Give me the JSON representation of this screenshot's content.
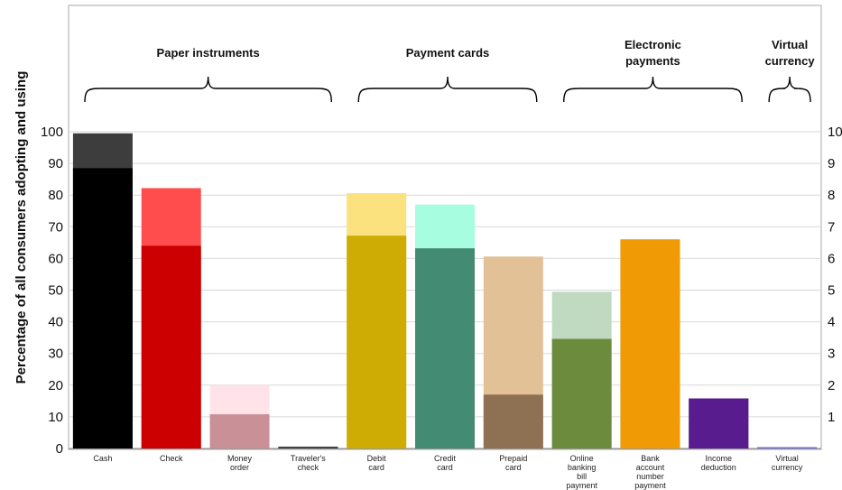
{
  "chart_data": {
    "type": "bar",
    "ylabel": "Percentage of all consumers adopting and using",
    "ylim": [
      0,
      100
    ],
    "yticks": [
      "0",
      "10",
      "20",
      "30",
      "40",
      "50",
      "60",
      "70",
      "80",
      "90",
      "100"
    ],
    "yticks_right": [
      "",
      "1",
      "2",
      "3",
      "4",
      "5",
      "6",
      "7",
      "8",
      "9",
      "10"
    ],
    "grid": true,
    "categories": [
      [
        "Cash"
      ],
      [
        "Check"
      ],
      [
        "Money",
        "order"
      ],
      [
        "Traveler's",
        "check"
      ],
      [
        "Debit",
        "card"
      ],
      [
        "Credit",
        "card"
      ],
      [
        "Prepaid",
        "card"
      ],
      [
        "Online",
        "banking",
        "bill",
        "payment"
      ],
      [
        "Bank",
        "account",
        "number",
        "payment"
      ],
      [
        "Income",
        "deduction"
      ],
      [
        "Virtual",
        "currency"
      ]
    ],
    "series": [
      {
        "values": [
          99.5,
          82.2,
          20.0,
          0.6,
          80.6,
          77.0,
          60.6,
          49.5,
          66.0,
          15.8,
          0.4
        ],
        "colors": [
          "#3d3d3d",
          "#ff4d4d",
          "#ffe3e8",
          "#4d4d4d",
          "#fbe27f",
          "#a7fde0",
          "#e2c197",
          "#c0dac2",
          "#f09a06",
          "#581c8e",
          "#6b6bd6"
        ]
      },
      {
        "values": [
          88.5,
          64.0,
          10.8,
          0.4,
          67.2,
          63.2,
          17.0,
          34.6,
          66.0,
          15.8,
          0.4
        ],
        "colors": [
          "#000000",
          "#cc0000",
          "#c99098",
          "#3d3d3d",
          "#ceac04",
          "#448b74",
          "#8e7052",
          "#6d8b3d",
          "#f09a06",
          "#581c8e",
          "#6b6bd6"
        ]
      }
    ],
    "groups": [
      {
        "label": [
          "Paper instruments"
        ],
        "from": 0,
        "to": 3
      },
      {
        "label": [
          "Payment cards"
        ],
        "from": 4,
        "to": 6
      },
      {
        "label": [
          "Electronic",
          "payments"
        ],
        "from": 7,
        "to": 9
      },
      {
        "label": [
          "Virtual",
          "currency"
        ],
        "from": 10,
        "to": 10
      }
    ]
  }
}
